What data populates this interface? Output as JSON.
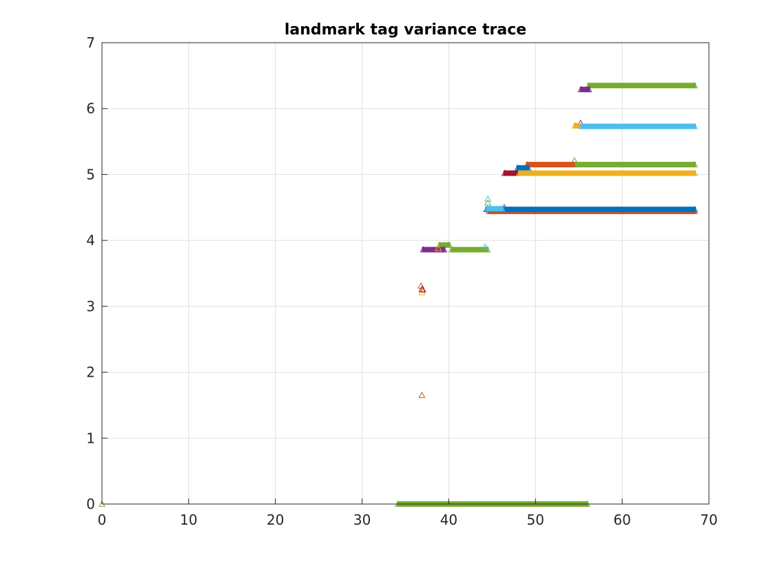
{
  "chart_data": {
    "type": "scatter",
    "title": "landmark tag variance trace",
    "xlabel": "",
    "ylabel": "",
    "xlim": [
      0,
      70
    ],
    "ylim": [
      0,
      7
    ],
    "x_ticks": [
      0,
      10,
      20,
      30,
      40,
      50,
      60,
      70
    ],
    "y_ticks": [
      0,
      1,
      2,
      3,
      4,
      5,
      6,
      7
    ],
    "x_tick_labels": [
      "0",
      "10",
      "20",
      "30",
      "40",
      "50",
      "60",
      "70"
    ],
    "y_tick_labels": [
      "0",
      "1",
      "2",
      "3",
      "4",
      "5",
      "6",
      "7"
    ],
    "grid": true,
    "marker": "triangle-open",
    "legend": "none",
    "series": [
      {
        "color": "#77AC30",
        "runs": [
          [
            34,
            56.1,
            0.0
          ],
          [
            38.8,
            40.2,
            3.93
          ],
          [
            40.2,
            44.6,
            3.86
          ],
          [
            54.5,
            68.5,
            5.15
          ],
          [
            56.0,
            68.5,
            6.35
          ]
        ],
        "points": [
          [
            0.0,
            0.0
          ],
          [
            54.5,
            5.21
          ],
          [
            44.5,
            4.57
          ]
        ]
      },
      {
        "color": "#7E2F8E",
        "runs": [
          [
            36.9,
            39.6,
            3.86
          ],
          [
            55.1,
            56.3,
            6.29
          ]
        ],
        "points": [
          [
            36.9,
            3.26
          ],
          [
            46.4,
            4.5
          ],
          [
            55.2,
            5.78
          ]
        ]
      },
      {
        "color": "#D95319",
        "runs": [
          [
            44.5,
            68.5,
            4.44
          ],
          [
            48.9,
            54.5,
            5.15
          ]
        ],
        "points": [
          [
            36.9,
            1.65
          ],
          [
            36.8,
            3.31
          ]
        ]
      },
      {
        "color": "#0072BD",
        "runs": [
          [
            44.2,
            68.5,
            4.47
          ],
          [
            47.8,
            49.3,
            5.1
          ]
        ],
        "points": []
      },
      {
        "color": "#A2142F",
        "runs": [
          [
            46.3,
            48.3,
            5.02
          ]
        ],
        "points": [
          [
            37.0,
            3.25
          ]
        ]
      },
      {
        "color": "#EDB120",
        "runs": [
          [
            48.0,
            68.5,
            5.02
          ],
          [
            54.4,
            55.2,
            5.74
          ]
        ],
        "points": [
          [
            36.9,
            3.21
          ],
          [
            38.8,
            3.88
          ]
        ]
      },
      {
        "color": "#4DBEEE",
        "runs": [
          [
            44.3,
            46.3,
            4.48
          ],
          [
            55.2,
            68.5,
            5.73
          ]
        ],
        "points": [
          [
            44.5,
            4.63
          ],
          [
            44.2,
            3.9
          ]
        ]
      }
    ]
  }
}
